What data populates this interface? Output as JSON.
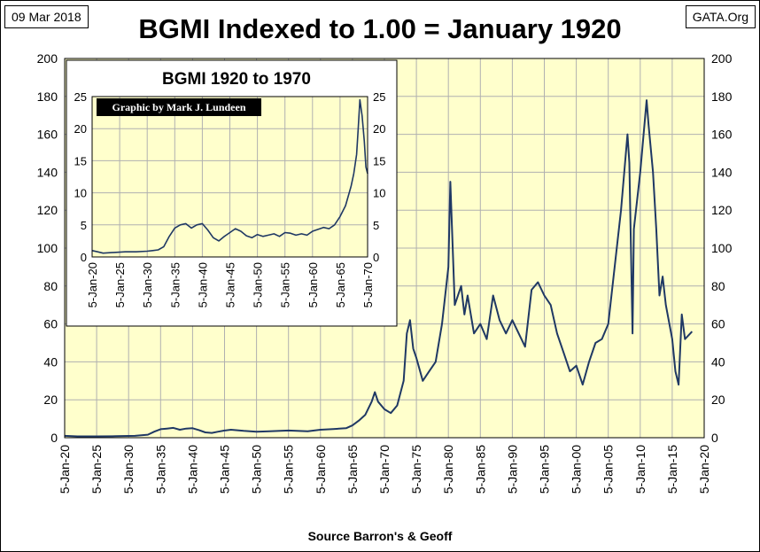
{
  "header": {
    "date_label": "09 Mar 2018",
    "site_label": "GATA.Org",
    "title": "BGMI  Indexed to 1.00 = January 1920"
  },
  "footer": {
    "source": "Source Barron's & Geoff"
  },
  "colors": {
    "plot_background": "#ffffcc",
    "line": "#1f3864",
    "credit_background": "#000000"
  },
  "chart_data": [
    {
      "type": "line",
      "title": "",
      "xlabel": "",
      "ylabel": "",
      "ylim": [
        0,
        200
      ],
      "xlim": [
        1920,
        2020
      ],
      "grid": true,
      "y_ticks": [
        0,
        20,
        40,
        60,
        80,
        100,
        120,
        140,
        160,
        180,
        200
      ],
      "y_ticks_mirrored_right": true,
      "x_tick_values": [
        1920,
        1925,
        1930,
        1935,
        1940,
        1945,
        1950,
        1955,
        1960,
        1965,
        1970,
        1975,
        1980,
        1985,
        1990,
        1995,
        2000,
        2005,
        2010,
        2015,
        2020
      ],
      "x_tick_labels": [
        "5-Jan-20",
        "5-Jan-25",
        "5-Jan-30",
        "5-Jan-35",
        "5-Jan-40",
        "5-Jan-45",
        "5-Jan-50",
        "5-Jan-55",
        "5-Jan-60",
        "5-Jan-65",
        "5-Jan-70",
        "5-Jan-75",
        "5-Jan-80",
        "5-Jan-85",
        "5-Jan-90",
        "5-Jan-95",
        "5-Jan-00",
        "5-Jan-05",
        "5-Jan-10",
        "5-Jan-15",
        "5-Jan-20"
      ],
      "series": [
        {
          "x": [
            1920,
            1922,
            1925,
            1928,
            1931,
            1933,
            1934,
            1935,
            1936,
            1937,
            1938,
            1939,
            1940,
            1941,
            1942,
            1943,
            1944,
            1945,
            1946,
            1948,
            1950,
            1952,
            1955,
            1958,
            1960,
            1962,
            1964,
            1965,
            1966,
            1967,
            1968,
            1968.5,
            1969,
            1970,
            1971,
            1972,
            1973,
            1973.5,
            1974,
            1974.5,
            1975,
            1976,
            1977,
            1978,
            1979,
            1980,
            1980.3,
            1981,
            1982,
            1982.5,
            1983,
            1984,
            1985,
            1986,
            1987,
            1988,
            1989,
            1990,
            1991,
            1992,
            1993,
            1994,
            1995,
            1996,
            1997,
            1998,
            1999,
            2000,
            2001,
            2002,
            2003,
            2004,
            2005,
            2006,
            2007,
            2008,
            2008.3,
            2008.8,
            2009,
            2010,
            2011,
            2011.3,
            2012,
            2012.5,
            2013,
            2013.5,
            2014,
            2015,
            2015.5,
            2016,
            2016.5,
            2017,
            2018.1
          ],
          "y": [
            1.0,
            0.7,
            0.7,
            0.8,
            1.0,
            1.6,
            3.2,
            4.5,
            4.8,
            5.2,
            4.2,
            4.8,
            5.0,
            4.0,
            2.8,
            2.5,
            3.2,
            3.8,
            4.2,
            3.6,
            3.2,
            3.4,
            3.8,
            3.4,
            4.2,
            4.6,
            5.0,
            6.5,
            9.0,
            12.0,
            19.0,
            24.0,
            19.0,
            15.0,
            13.0,
            17.0,
            30.0,
            55.0,
            62.0,
            47.0,
            42.0,
            30.0,
            35.0,
            40.0,
            60.0,
            90.0,
            135.0,
            70.0,
            80.0,
            65.0,
            75.0,
            55.0,
            60.0,
            52.0,
            75.0,
            62.0,
            55.0,
            62.0,
            55.0,
            48.0,
            78.0,
            82.0,
            75.0,
            70.0,
            55.0,
            45.0,
            35.0,
            38.0,
            28.0,
            40.0,
            50.0,
            52.0,
            60.0,
            90.0,
            120.0,
            160.0,
            145.0,
            55.0,
            110.0,
            140.0,
            178.0,
            165.0,
            140.0,
            110.0,
            75.0,
            85.0,
            70.0,
            52.0,
            35.0,
            28.0,
            65.0,
            52.0,
            56.0
          ]
        }
      ]
    },
    {
      "type": "line",
      "title": "BGMI  1920 to 1970",
      "annotation": "Graphic by Mark J. Lundeen",
      "xlabel": "",
      "ylabel": "",
      "ylim": [
        0,
        25
      ],
      "xlim": [
        1920,
        1970
      ],
      "grid": true,
      "y_ticks": [
        0,
        5,
        10,
        15,
        20,
        25
      ],
      "y_ticks_mirrored_right": true,
      "x_tick_values": [
        1920,
        1925,
        1930,
        1935,
        1940,
        1945,
        1950,
        1955,
        1960,
        1965,
        1970
      ],
      "x_tick_labels": [
        "5-Jan-20",
        "5-Jan-25",
        "5-Jan-30",
        "5-Jan-35",
        "5-Jan-40",
        "5-Jan-45",
        "5-Jan-50",
        "5-Jan-55",
        "5-Jan-60",
        "5-Jan-65",
        "5-Jan-70"
      ],
      "series": [
        {
          "x": [
            1920,
            1921,
            1922,
            1924,
            1926,
            1928,
            1930,
            1931,
            1932,
            1933,
            1934,
            1935,
            1936,
            1937,
            1938,
            1939,
            1940,
            1941,
            1942,
            1943,
            1944,
            1945,
            1946,
            1947,
            1948,
            1949,
            1950,
            1951,
            1952,
            1953,
            1954,
            1955,
            1956,
            1957,
            1958,
            1959,
            1960,
            1961,
            1962,
            1963,
            1964,
            1965,
            1966,
            1967,
            1967.5,
            1968,
            1968.3,
            1968.6,
            1969,
            1969.4,
            1969.7,
            1970
          ],
          "y": [
            1.0,
            0.8,
            0.6,
            0.7,
            0.8,
            0.8,
            0.9,
            1.0,
            1.1,
            1.6,
            3.2,
            4.5,
            5.0,
            5.2,
            4.5,
            5.0,
            5.2,
            4.2,
            3.0,
            2.5,
            3.2,
            3.8,
            4.4,
            4.0,
            3.3,
            3.0,
            3.5,
            3.2,
            3.4,
            3.6,
            3.2,
            3.8,
            3.7,
            3.4,
            3.6,
            3.4,
            4.0,
            4.3,
            4.6,
            4.4,
            5.0,
            6.3,
            8.0,
            11.0,
            13.0,
            16.0,
            20.0,
            24.5,
            22.0,
            18.0,
            14.0,
            13.0
          ]
        }
      ]
    }
  ]
}
